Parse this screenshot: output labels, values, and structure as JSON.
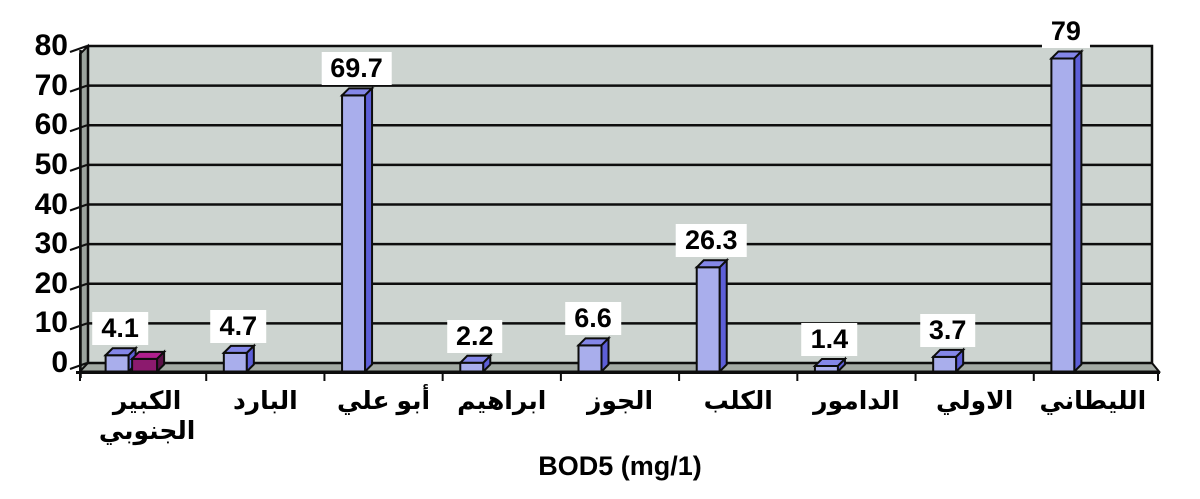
{
  "page": {
    "background": "#ffffff"
  },
  "chart_data": {
    "type": "bar",
    "style": "3d-column",
    "title": "BOD5 (mg/1)",
    "xlabel": "",
    "ylabel": "",
    "categories": [
      "الكبير\nالجنوبي",
      "البارد",
      "أبو علي",
      "ابراهيم",
      "الجوز",
      "الكلب",
      "الدامور",
      "الاولي",
      "الليطاني"
    ],
    "yticks": [
      0,
      10,
      20,
      30,
      40,
      50,
      60,
      70,
      80
    ],
    "ylim": [
      0,
      80
    ],
    "grid": true,
    "legend_position": "none",
    "series": [
      {
        "name": "BOD5",
        "values": [
          4.1,
          4.7,
          69.7,
          2.2,
          6.6,
          26.3,
          1.4,
          3.7,
          79
        ],
        "value_labels": [
          "4.1",
          "4.7",
          "69.7",
          "2.2",
          "6.6",
          "26.3",
          "1.4",
          "3.7",
          "79"
        ],
        "show_value_labels": true,
        "colors": {
          "front": "#a9aeec",
          "top": "#8487e8",
          "side": "#5d5fd8"
        }
      },
      {
        "name": "unlabeled-magenta-bar",
        "values": [
          3.2,
          null,
          null,
          null,
          null,
          null,
          null,
          null,
          null
        ],
        "value_labels": [
          null,
          null,
          null,
          null,
          null,
          null,
          null,
          null,
          null
        ],
        "show_value_labels": false,
        "colors": {
          "front": "#8c1a6e",
          "top": "#b01f8e",
          "side": "#5c1048"
        }
      }
    ],
    "colors": {
      "wall": "#cdd4d0",
      "side_wall": "#9aa29c",
      "floor": "#a3aaa4",
      "outline": "#0d0d0d",
      "label_box_bg": "#ffffff",
      "text": "#000000"
    }
  }
}
